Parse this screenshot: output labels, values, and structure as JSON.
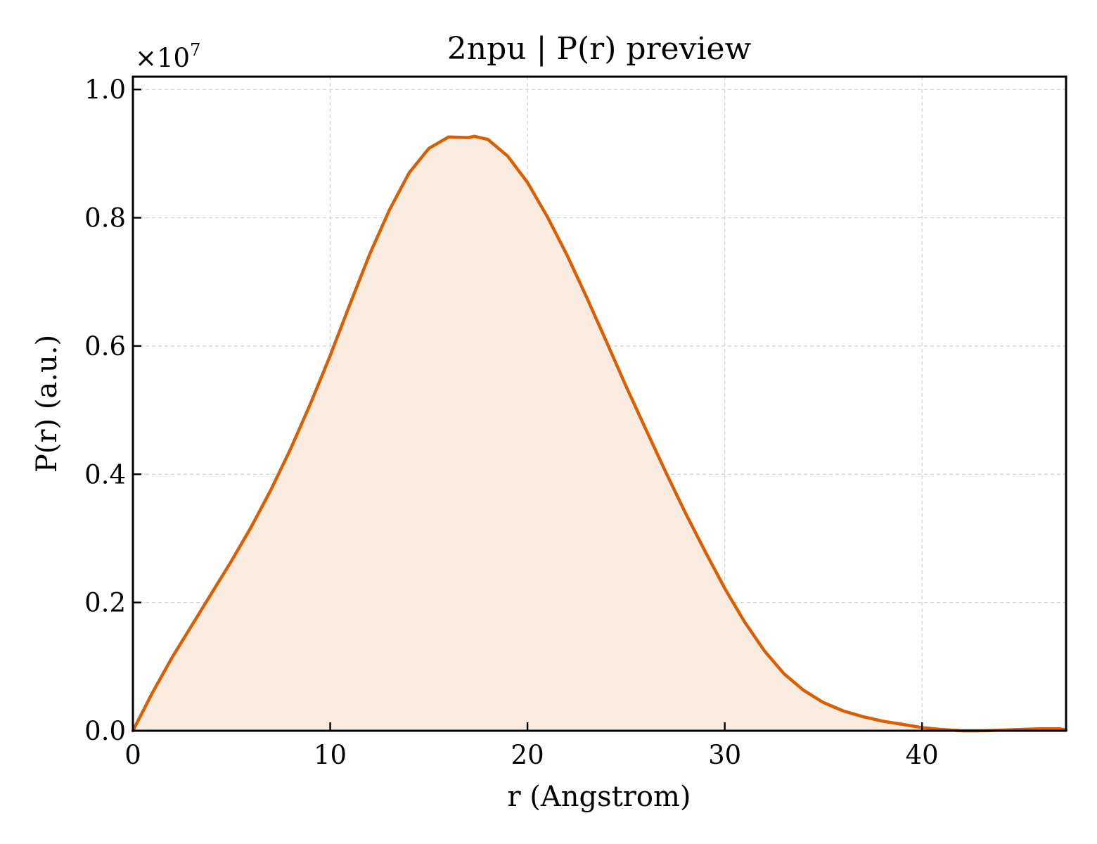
{
  "chart_data": {
    "type": "area",
    "title": "2npu | P(r) preview",
    "xlabel": "r (Angstrom)",
    "ylabel": "P(r) (a.u.)",
    "y_multiplier_label": "×10",
    "y_multiplier_exponent": "7",
    "xlim": [
      0,
      47.3
    ],
    "ylim": [
      0,
      1.02
    ],
    "x_ticks": [
      0,
      10,
      20,
      30,
      40
    ],
    "x_tick_labels": [
      "0",
      "10",
      "20",
      "30",
      "40"
    ],
    "y_ticks": [
      0,
      0.2,
      0.4,
      0.6,
      0.8,
      1.0
    ],
    "y_tick_labels": [
      "0.0",
      "0.2",
      "0.4",
      "0.6",
      "0.8",
      "1.0"
    ],
    "grid": true,
    "series": [
      {
        "color": "#d95f02",
        "fill_color": "#f9ebe0",
        "x": [
          0,
          1,
          2,
          3,
          4,
          5,
          6,
          7,
          8,
          9,
          10,
          11,
          12,
          13,
          14,
          15,
          16,
          17,
          17.3,
          18,
          19,
          20,
          21,
          22,
          23,
          24,
          25,
          26,
          27,
          28,
          29,
          30,
          31,
          32,
          33,
          34,
          35,
          36,
          37,
          38,
          39,
          40,
          41,
          42,
          43,
          44,
          45,
          46,
          47,
          47.3
        ],
        "y": [
          0,
          0.06,
          0.115,
          0.165,
          0.215,
          0.265,
          0.318,
          0.376,
          0.44,
          0.51,
          0.585,
          0.665,
          0.743,
          0.812,
          0.87,
          0.908,
          0.926,
          0.925,
          0.927,
          0.922,
          0.896,
          0.855,
          0.802,
          0.742,
          0.676,
          0.607,
          0.537,
          0.47,
          0.404,
          0.34,
          0.28,
          0.222,
          0.17,
          0.125,
          0.089,
          0.063,
          0.044,
          0.031,
          0.022,
          0.015,
          0.01,
          0.005,
          0.002,
          0.0,
          0.0,
          0.001,
          0.002,
          0.003,
          0.003,
          0.001
        ]
      }
    ]
  }
}
